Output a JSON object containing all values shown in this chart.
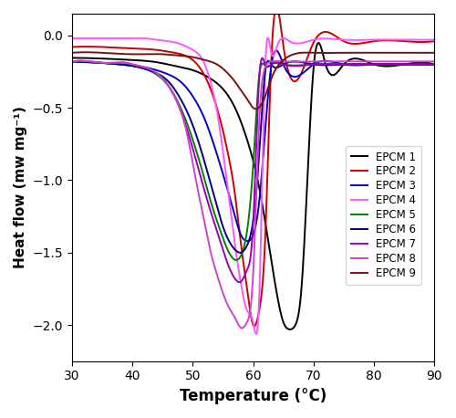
{
  "title": "",
  "xlabel": "Temperature (°C)",
  "ylabel": "Heat flow (mw mg⁻¹)",
  "xlim": [
    30,
    90
  ],
  "ylim": [
    -2.25,
    0.15
  ],
  "xticks": [
    30,
    40,
    50,
    60,
    70,
    80,
    90
  ],
  "yticks": [
    0.0,
    -0.5,
    -1.0,
    -1.5,
    -2.0
  ],
  "series": [
    {
      "label": "EPCM 1",
      "color": "#000000",
      "linewidth": 1.4,
      "x": [
        30,
        35,
        40,
        44,
        47,
        50,
        53,
        55,
        57,
        59,
        61,
        63,
        64,
        65,
        66,
        67,
        68,
        70,
        72,
        75,
        80,
        85,
        90
      ],
      "y": [
        -0.155,
        -0.16,
        -0.17,
        -0.185,
        -0.21,
        -0.24,
        -0.3,
        -0.37,
        -0.5,
        -0.72,
        -1.05,
        -1.55,
        -1.8,
        -1.98,
        -2.03,
        -2.0,
        -1.75,
        -0.23,
        -0.2,
        -0.2,
        -0.2,
        -0.2,
        -0.2
      ]
    },
    {
      "label": "EPCM 2",
      "color": "#cc0000",
      "linewidth": 1.4,
      "x": [
        30,
        35,
        40,
        44,
        47,
        50,
        52,
        54,
        56,
        57,
        58,
        59,
        60,
        61,
        62,
        63,
        65,
        70,
        75,
        80,
        85,
        90
      ],
      "y": [
        -0.08,
        -0.08,
        -0.09,
        -0.1,
        -0.12,
        -0.17,
        -0.28,
        -0.5,
        -0.85,
        -1.1,
        -1.45,
        -1.75,
        -2.0,
        -1.9,
        -1.4,
        -0.18,
        -0.07,
        -0.05,
        -0.04,
        -0.04,
        -0.04,
        -0.04
      ]
    },
    {
      "label": "EPCM 3",
      "color": "#0000cc",
      "linewidth": 1.4,
      "x": [
        30,
        35,
        38,
        40,
        42,
        44,
        46,
        48,
        50,
        52,
        54,
        56,
        57,
        58,
        59,
        60,
        61,
        63,
        65,
        70,
        75,
        80,
        85,
        90
      ],
      "y": [
        -0.18,
        -0.19,
        -0.2,
        -0.21,
        -0.22,
        -0.24,
        -0.27,
        -0.32,
        -0.42,
        -0.58,
        -0.82,
        -1.1,
        -1.25,
        -1.38,
        -1.42,
        -1.38,
        -1.15,
        -0.21,
        -0.2,
        -0.2,
        -0.2,
        -0.2,
        -0.2,
        -0.2
      ]
    },
    {
      "label": "EPCM 4",
      "color": "#ff55ff",
      "linewidth": 1.4,
      "x": [
        30,
        33,
        36,
        38,
        40,
        42,
        44,
        46,
        48,
        50,
        52,
        53,
        54,
        55,
        56,
        57,
        58,
        59,
        60,
        61,
        62,
        63,
        64,
        66,
        70,
        75,
        80,
        85,
        90
      ],
      "y": [
        -0.02,
        -0.02,
        -0.02,
        -0.02,
        -0.02,
        -0.02,
        -0.03,
        -0.04,
        -0.06,
        -0.1,
        -0.2,
        -0.33,
        -0.52,
        -0.8,
        -1.12,
        -1.45,
        -1.72,
        -1.9,
        -1.98,
        -1.82,
        -0.22,
        -0.12,
        -0.07,
        -0.04,
        -0.03,
        -0.03,
        -0.03,
        -0.03,
        -0.03
      ]
    },
    {
      "label": "EPCM 5",
      "color": "#008000",
      "linewidth": 1.4,
      "x": [
        30,
        35,
        38,
        40,
        42,
        44,
        46,
        48,
        50,
        52,
        53,
        54,
        55,
        56,
        57,
        58,
        59,
        60,
        61,
        62,
        63,
        65,
        70,
        75,
        80,
        85,
        90
      ],
      "y": [
        -0.18,
        -0.19,
        -0.2,
        -0.21,
        -0.23,
        -0.27,
        -0.35,
        -0.5,
        -0.72,
        -1.0,
        -1.15,
        -1.28,
        -1.4,
        -1.5,
        -1.55,
        -1.52,
        -1.35,
        -0.9,
        -0.28,
        -0.21,
        -0.2,
        -0.2,
        -0.2,
        -0.2,
        -0.2,
        -0.2,
        -0.2
      ]
    },
    {
      "label": "EPCM 6",
      "color": "#000080",
      "linewidth": 1.4,
      "x": [
        30,
        35,
        38,
        40,
        42,
        44,
        46,
        48,
        50,
        52,
        54,
        55,
        56,
        57,
        58,
        59,
        60,
        61,
        62,
        63,
        65,
        70,
        75,
        80,
        85,
        90
      ],
      "y": [
        -0.18,
        -0.19,
        -0.2,
        -0.21,
        -0.23,
        -0.26,
        -0.32,
        -0.44,
        -0.62,
        -0.88,
        -1.18,
        -1.32,
        -1.42,
        -1.48,
        -1.5,
        -1.45,
        -1.28,
        -0.82,
        -0.25,
        -0.2,
        -0.2,
        -0.2,
        -0.2,
        -0.2,
        -0.2,
        -0.2
      ]
    },
    {
      "label": "EPCM 7",
      "color": "#9900bb",
      "linewidth": 1.4,
      "x": [
        30,
        33,
        36,
        39,
        40,
        42,
        44,
        46,
        48,
        50,
        52,
        53,
        54,
        55,
        56,
        57,
        58,
        59,
        60,
        61,
        62,
        63,
        65,
        70,
        75,
        80,
        85,
        90
      ],
      "y": [
        -0.18,
        -0.18,
        -0.19,
        -0.19,
        -0.2,
        -0.22,
        -0.26,
        -0.35,
        -0.52,
        -0.78,
        -1.08,
        -1.22,
        -1.35,
        -1.48,
        -1.6,
        -1.68,
        -1.7,
        -1.62,
        -1.3,
        -0.3,
        -0.2,
        -0.2,
        -0.2,
        -0.2,
        -0.2,
        -0.2,
        -0.2,
        -0.2
      ]
    },
    {
      "label": "EPCM 8",
      "color": "#cc44cc",
      "linewidth": 1.4,
      "x": [
        30,
        33,
        36,
        39,
        40,
        42,
        44,
        46,
        47,
        48,
        49,
        50,
        51,
        52,
        53,
        54,
        55,
        56,
        57,
        58,
        59,
        60,
        61,
        62,
        63,
        65,
        70,
        75,
        80,
        85,
        90
      ],
      "y": [
        -0.18,
        -0.18,
        -0.19,
        -0.19,
        -0.2,
        -0.22,
        -0.26,
        -0.35,
        -0.42,
        -0.52,
        -0.67,
        -0.88,
        -1.1,
        -1.3,
        -1.5,
        -1.65,
        -1.78,
        -1.88,
        -1.95,
        -2.02,
        -1.98,
        -1.65,
        -0.6,
        -0.22,
        -0.18,
        -0.18,
        -0.18,
        -0.18,
        -0.18,
        -0.18,
        -0.18
      ]
    },
    {
      "label": "EPCM 9",
      "color": "#7b1010",
      "linewidth": 1.4,
      "x": [
        30,
        35,
        40,
        45,
        48,
        50,
        52,
        54,
        56,
        57,
        58,
        59,
        60,
        62,
        63,
        65,
        68,
        70,
        75,
        80,
        85,
        90
      ],
      "y": [
        -0.12,
        -0.12,
        -0.13,
        -0.13,
        -0.14,
        -0.15,
        -0.17,
        -0.2,
        -0.27,
        -0.32,
        -0.38,
        -0.44,
        -0.5,
        -0.42,
        -0.3,
        -0.17,
        -0.12,
        -0.12,
        -0.12,
        -0.12,
        -0.12,
        -0.12
      ]
    }
  ],
  "legend_loc": "center right",
  "legend_fontsize": 8.5,
  "figsize": [
    5.0,
    4.58
  ],
  "dpi": 100
}
